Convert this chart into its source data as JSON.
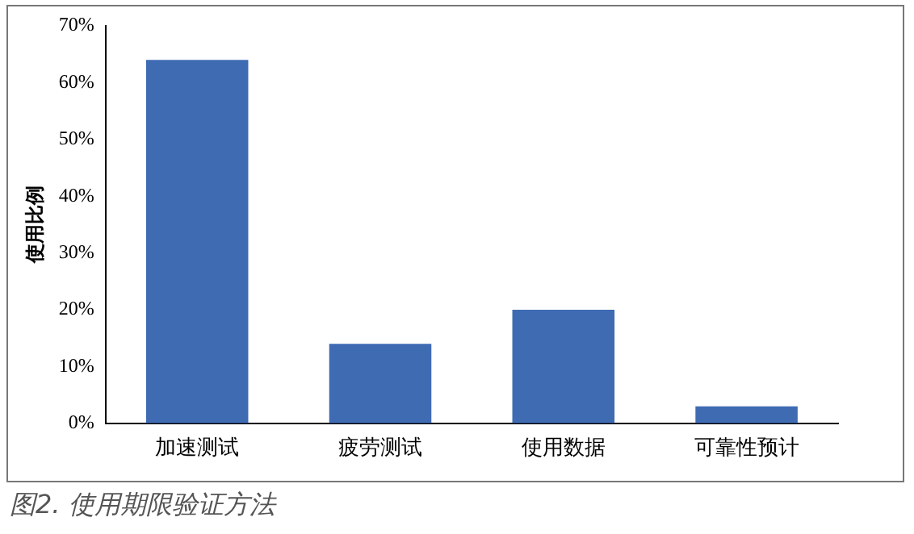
{
  "chart_data": {
    "type": "bar",
    "ylabel": "使用比例",
    "categories": [
      "加速测试",
      "疲劳测试",
      "使用数据",
      "可靠性预计"
    ],
    "values": [
      64,
      14,
      20,
      3
    ],
    "color": "#3f6bb3",
    "ylim": [
      0,
      70
    ],
    "yticks": [
      {
        "value": 0,
        "label": "0%"
      },
      {
        "value": 10,
        "label": "10%"
      },
      {
        "value": 20,
        "label": "20%"
      },
      {
        "value": 30,
        "label": "30%"
      },
      {
        "value": 40,
        "label": "40%"
      },
      {
        "value": 50,
        "label": "50%"
      },
      {
        "value": 60,
        "label": "60%"
      },
      {
        "value": 70,
        "label": "70%"
      }
    ],
    "grid": false,
    "legend": false,
    "annotations": [
      "图2. 使用期限验证方法"
    ]
  }
}
